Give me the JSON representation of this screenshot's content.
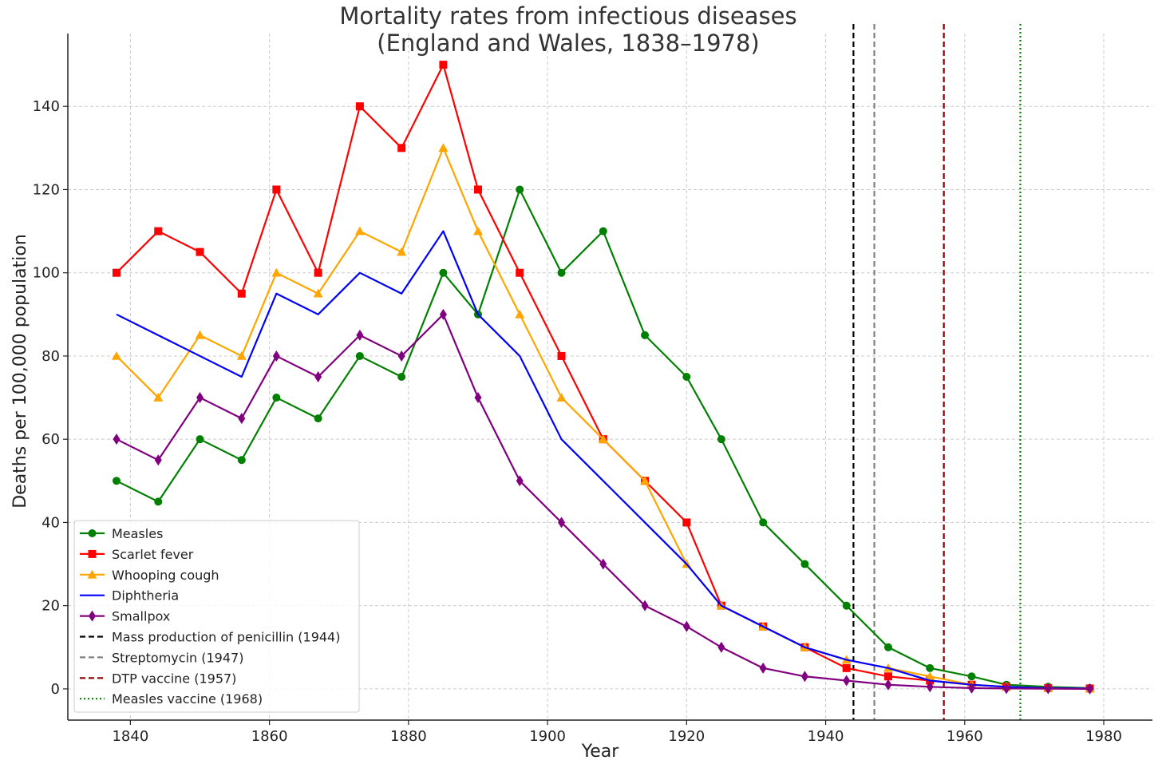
{
  "chart_data": {
    "type": "line",
    "title": [
      "Mortality rates from infectious diseases",
      "(England and Wales, 1838–1978)"
    ],
    "xlabel": "Year",
    "ylabel": "Deaths per 100,000 population",
    "xlim": [
      1831,
      1987
    ],
    "ylim": [
      -7.5,
      157.5
    ],
    "xticks": [
      1840,
      1860,
      1880,
      1900,
      1920,
      1940,
      1960,
      1980
    ],
    "yticks": [
      0,
      20,
      40,
      60,
      80,
      100,
      120,
      140
    ],
    "grid": true,
    "legend_position": "lower-left",
    "x": [
      1838,
      1844,
      1850,
      1856,
      1861,
      1867,
      1873,
      1879,
      1885,
      1890,
      1896,
      1902,
      1908,
      1914,
      1920,
      1925,
      1931,
      1937,
      1943,
      1949,
      1955,
      1961,
      1966,
      1972,
      1978
    ],
    "series": [
      {
        "name": "Measles",
        "color": "#008000",
        "marker": "circle",
        "values": [
          50,
          45,
          60,
          55,
          70,
          65,
          80,
          75,
          100,
          90,
          120,
          100,
          110,
          85,
          75,
          60,
          40,
          30,
          20,
          10,
          5,
          3,
          1,
          0.5,
          0.2
        ]
      },
      {
        "name": "Scarlet fever",
        "color": "#ff0000",
        "marker": "square",
        "values": [
          100,
          110,
          105,
          95,
          120,
          100,
          140,
          130,
          150,
          120,
          100,
          80,
          60,
          50,
          40,
          20,
          15,
          10,
          5,
          3,
          2,
          1,
          0.5,
          0.2,
          0.1
        ]
      },
      {
        "name": "Whooping cough",
        "color": "#ffa500",
        "marker": "triangle",
        "values": [
          80,
          70,
          85,
          80,
          100,
          95,
          110,
          105,
          130,
          110,
          90,
          70,
          60,
          50,
          30,
          20,
          15,
          10,
          7,
          5,
          3,
          1,
          0.5,
          0.2,
          0.1
        ]
      },
      {
        "name": "Diphtheria",
        "color": "#0000ff",
        "marker": "none",
        "values": [
          90,
          85,
          80,
          75,
          95,
          90,
          100,
          95,
          110,
          90,
          80,
          60,
          50,
          40,
          30,
          20,
          15,
          10,
          7,
          5,
          2,
          1,
          0.5,
          0.2,
          0.1
        ]
      },
      {
        "name": "Smallpox",
        "color": "#800080",
        "marker": "diamond",
        "values": [
          60,
          55,
          70,
          65,
          80,
          75,
          85,
          80,
          90,
          70,
          50,
          40,
          30,
          20,
          15,
          10,
          5,
          3,
          2,
          1,
          0.5,
          0.2,
          0.1,
          0.05,
          0.01
        ]
      }
    ],
    "vlines": [
      {
        "name": "Mass production of penicillin (1944)",
        "x": 1944,
        "color": "#000000",
        "style": "dashed"
      },
      {
        "name": "Streptomycin (1947)",
        "x": 1947,
        "color": "#808080",
        "style": "dashed"
      },
      {
        "name": "DTP vaccine (1957)",
        "x": 1957,
        "color": "#8b0000",
        "style": "dashed"
      },
      {
        "name": "Measles vaccine (1968)",
        "x": 1968,
        "color": "#008000",
        "style": "dotted"
      }
    ]
  }
}
